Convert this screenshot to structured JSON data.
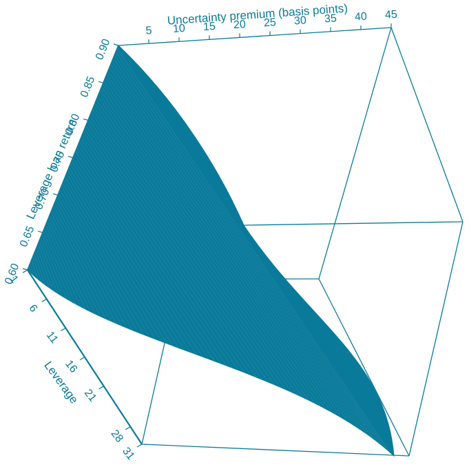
{
  "chart_data": {
    "type": "surface3d",
    "xlabel": "Uncertainty premium (basis points)",
    "ylabel": "Leverage",
    "zlabel": "Leverage loan return",
    "x_ticks": [
      "5",
      "10",
      "15",
      "20",
      "25",
      "30",
      "35",
      "40",
      "45"
    ],
    "y_ticks": [
      "1",
      "6",
      "11",
      "16",
      "21",
      "28",
      "31"
    ],
    "z_ticks": [
      "0.60",
      "0.65",
      "0.70",
      "0.75",
      "0.80",
      "0.85",
      "0.90"
    ],
    "xlim": [
      0,
      45
    ],
    "ylim": [
      1,
      31
    ],
    "zlim": [
      0.6,
      0.9
    ],
    "colors": {
      "accent": "#0A7A9A",
      "surface": "#0A7A9A",
      "background": "#FFFFFF"
    }
  }
}
